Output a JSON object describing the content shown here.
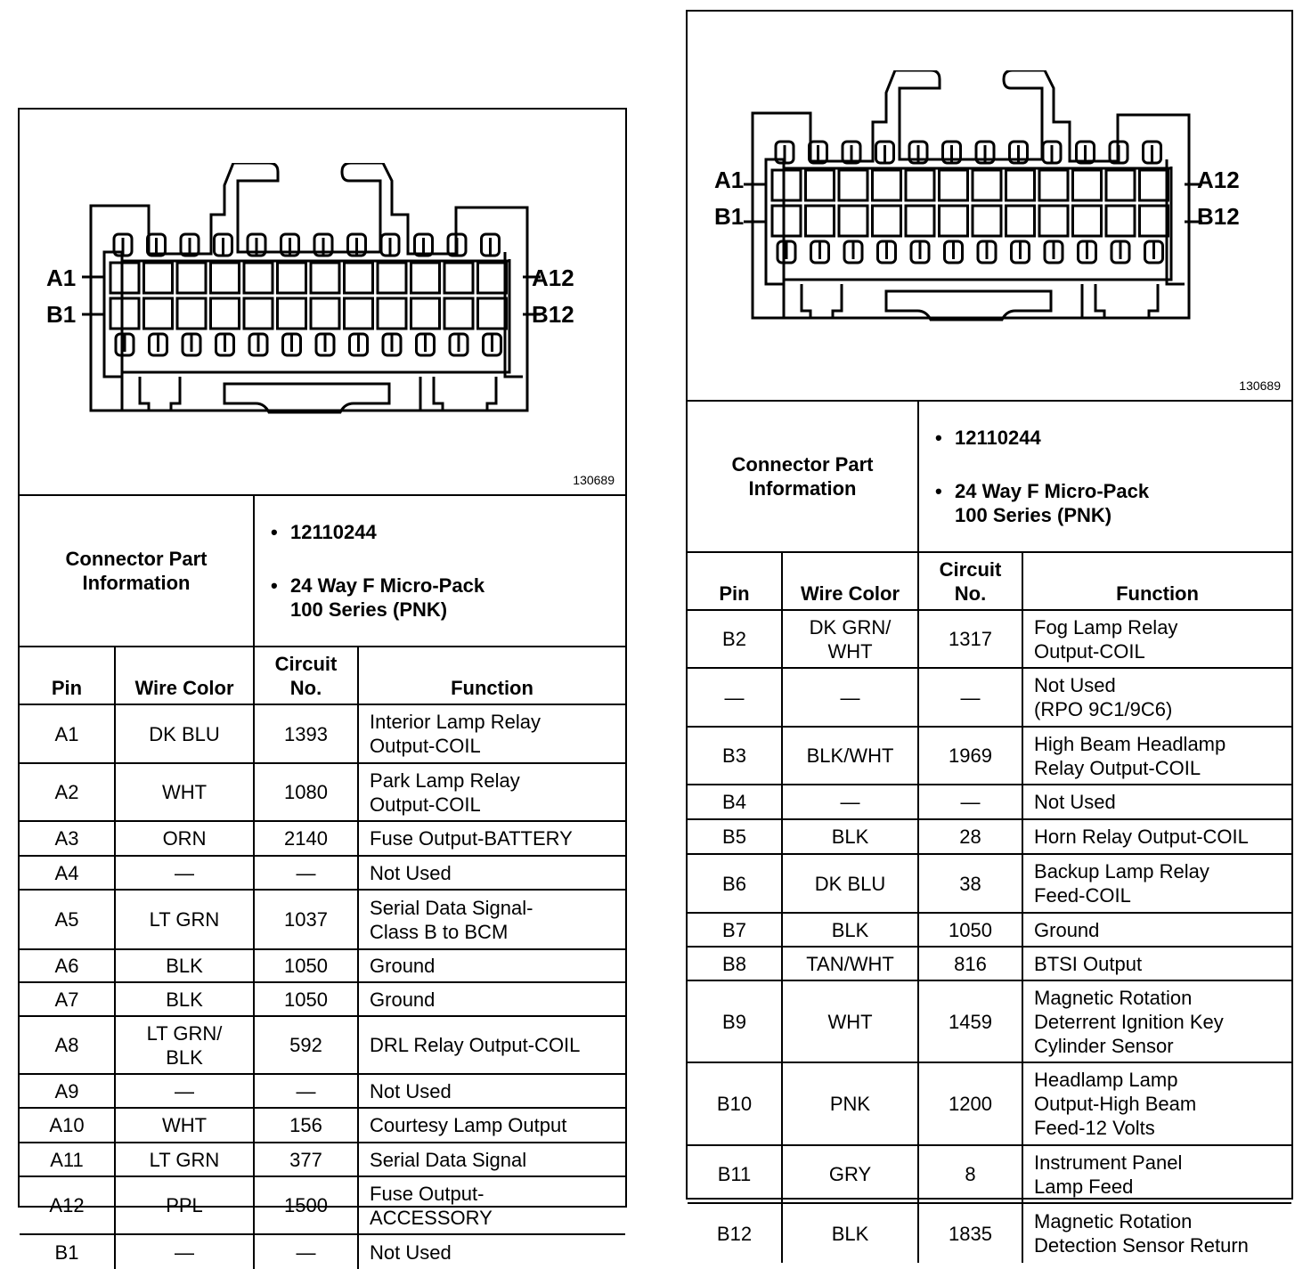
{
  "left": {
    "part_number_label": "130689",
    "pin_labels": {
      "a1": "A1",
      "b1": "B1",
      "a12": "A12",
      "b12": "B12"
    },
    "connector_info": {
      "label": "Connector Part\nInformation",
      "items": [
        "12110244",
        "24 Way F Micro-Pack\n100 Series (PNK)"
      ]
    },
    "headers": {
      "pin": "Pin",
      "wire": "Wire Color",
      "circuit": "Circuit\nNo.",
      "function": "Function"
    },
    "rows": [
      {
        "pin": "A1",
        "wire": "DK BLU",
        "circuit": "1393",
        "function": "Interior Lamp Relay\nOutput-COIL"
      },
      {
        "pin": "A2",
        "wire": "WHT",
        "circuit": "1080",
        "function": "Park Lamp Relay\nOutput-COIL"
      },
      {
        "pin": "A3",
        "wire": "ORN",
        "circuit": "2140",
        "function": "Fuse Output-BATTERY"
      },
      {
        "pin": "A4",
        "wire": "—",
        "circuit": "—",
        "function": "Not Used"
      },
      {
        "pin": "A5",
        "wire": "LT GRN",
        "circuit": "1037",
        "function": "Serial Data Signal-\nClass B to BCM"
      },
      {
        "pin": "A6",
        "wire": "BLK",
        "circuit": "1050",
        "function": "Ground"
      },
      {
        "pin": "A7",
        "wire": "BLK",
        "circuit": "1050",
        "function": "Ground"
      },
      {
        "pin": "A8",
        "wire": "LT GRN/\nBLK",
        "circuit": "592",
        "function": "DRL Relay Output-COIL"
      },
      {
        "pin": "A9",
        "wire": "—",
        "circuit": "—",
        "function": "Not Used"
      },
      {
        "pin": "A10",
        "wire": "WHT",
        "circuit": "156",
        "function": "Courtesy Lamp Output"
      },
      {
        "pin": "A11",
        "wire": "LT GRN",
        "circuit": "377",
        "function": "Serial Data Signal"
      },
      {
        "pin": "A12",
        "wire": "PPL",
        "circuit": "1500",
        "function": "Fuse Output-\nACCESSORY"
      },
      {
        "pin": "B1",
        "wire": "—",
        "circuit": "—",
        "function": "Not Used"
      }
    ]
  },
  "right": {
    "part_number_label": "130689",
    "pin_labels": {
      "a1": "A1",
      "b1": "B1",
      "a12": "A12",
      "b12": "B12"
    },
    "connector_info": {
      "label": "Connector Part\nInformation",
      "items": [
        "12110244",
        "24 Way F Micro-Pack\n100 Series (PNK)"
      ]
    },
    "headers": {
      "pin": "Pin",
      "wire": "Wire Color",
      "circuit": "Circuit\nNo.",
      "function": "Function"
    },
    "rows": [
      {
        "pin": "B2",
        "wire": "DK GRN/\nWHT",
        "circuit": "1317",
        "function": "Fog Lamp Relay\nOutput-COIL"
      },
      {
        "pin": "—",
        "wire": "—",
        "circuit": "—",
        "function": "Not Used\n(RPO 9C1/9C6)"
      },
      {
        "pin": "B3",
        "wire": "BLK/WHT",
        "circuit": "1969",
        "function": "High Beam Headlamp\nRelay Output-COIL"
      },
      {
        "pin": "B4",
        "wire": "—",
        "circuit": "—",
        "function": "Not Used"
      },
      {
        "pin": "B5",
        "wire": "BLK",
        "circuit": "28",
        "function": "Horn Relay Output-COIL"
      },
      {
        "pin": "B6",
        "wire": "DK BLU",
        "circuit": "38",
        "function": "Backup Lamp Relay\nFeed-COIL"
      },
      {
        "pin": "B7",
        "wire": "BLK",
        "circuit": "1050",
        "function": "Ground"
      },
      {
        "pin": "B8",
        "wire": "TAN/WHT",
        "circuit": "816",
        "function": "BTSI Output"
      },
      {
        "pin": "B9",
        "wire": "WHT",
        "circuit": "1459",
        "function": "Magnetic Rotation\nDeterrent Ignition Key\nCylinder Sensor"
      },
      {
        "pin": "B10",
        "wire": "PNK",
        "circuit": "1200",
        "function": "Headlamp Lamp\nOutput-High Beam\nFeed-12 Volts"
      },
      {
        "pin": "B11",
        "wire": "GRY",
        "circuit": "8",
        "function": "Instrument Panel\nLamp Feed"
      },
      {
        "pin": "B12",
        "wire": "BLK",
        "circuit": "1835",
        "function": "Magnetic Rotation\nDetection Sensor Return"
      }
    ]
  }
}
